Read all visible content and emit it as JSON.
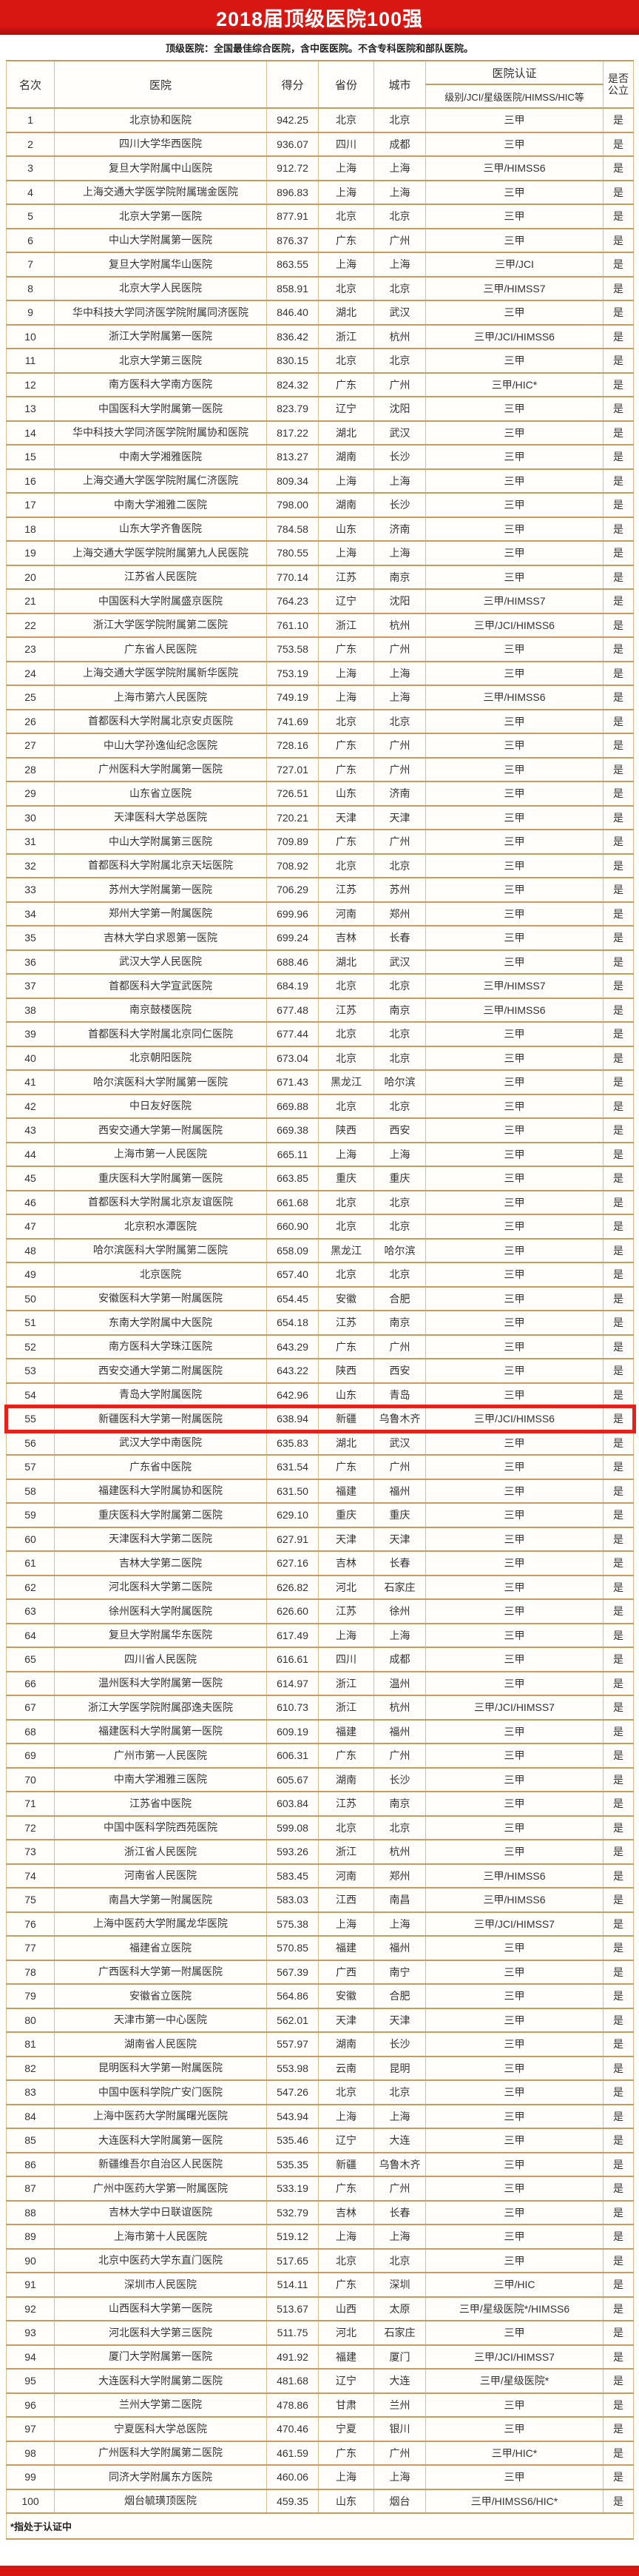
{
  "chart_data": {
    "type": "table",
    "title": "2018届顶级医院100强",
    "subtitle": "顶级医院：全国最佳综合医院，含中医医院。不含专科医院和部队医院。",
    "footnote": "*指处于认证中",
    "highlighted_rank": 55,
    "header": {
      "rank": "名次",
      "hospital": "医院",
      "score": "得分",
      "province": "省份",
      "city": "城市",
      "cert_group": "医院认证",
      "cert_detail": "级别/JCI/星级医院/HIMSS/HIC等",
      "is_public": "是否公立"
    },
    "colors": {
      "banner_red": "#d81712",
      "border_tan": "#c79c60",
      "highlight_red": "#e1231b"
    },
    "rows": [
      [
        1,
        "北京协和医院",
        "942.25",
        "北京",
        "北京",
        "三甲",
        "是"
      ],
      [
        2,
        "四川大学华西医院",
        "936.07",
        "四川",
        "成都",
        "三甲",
        "是"
      ],
      [
        3,
        "复旦大学附属中山医院",
        "912.72",
        "上海",
        "上海",
        "三甲/HIMSS6",
        "是"
      ],
      [
        4,
        "上海交通大学医学院附属瑞金医院",
        "896.83",
        "上海",
        "上海",
        "三甲",
        "是"
      ],
      [
        5,
        "北京大学第一医院",
        "877.91",
        "北京",
        "北京",
        "三甲",
        "是"
      ],
      [
        6,
        "中山大学附属第一医院",
        "876.37",
        "广东",
        "广州",
        "三甲",
        "是"
      ],
      [
        7,
        "复旦大学附属华山医院",
        "863.55",
        "上海",
        "上海",
        "三甲/JCI",
        "是"
      ],
      [
        8,
        "北京大学人民医院",
        "858.91",
        "北京",
        "北京",
        "三甲/HIMSS7",
        "是"
      ],
      [
        9,
        "华中科技大学同济医学院附属同济医院",
        "846.40",
        "湖北",
        "武汉",
        "三甲",
        "是"
      ],
      [
        10,
        "浙江大学附属第一医院",
        "836.42",
        "浙江",
        "杭州",
        "三甲/JCI/HIMSS6",
        "是"
      ],
      [
        11,
        "北京大学第三医院",
        "830.15",
        "北京",
        "北京",
        "三甲",
        "是"
      ],
      [
        12,
        "南方医科大学南方医院",
        "824.32",
        "广东",
        "广州",
        "三甲/HIC*",
        "是"
      ],
      [
        13,
        "中国医科大学附属第一医院",
        "823.79",
        "辽宁",
        "沈阳",
        "三甲",
        "是"
      ],
      [
        14,
        "华中科技大学同济医学院附属协和医院",
        "817.22",
        "湖北",
        "武汉",
        "三甲",
        "是"
      ],
      [
        15,
        "中南大学湘雅医院",
        "813.27",
        "湖南",
        "长沙",
        "三甲",
        "是"
      ],
      [
        16,
        "上海交通大学医学院附属仁济医院",
        "809.34",
        "上海",
        "上海",
        "三甲",
        "是"
      ],
      [
        17,
        "中南大学湘雅二医院",
        "798.00",
        "湖南",
        "长沙",
        "三甲",
        "是"
      ],
      [
        18,
        "山东大学齐鲁医院",
        "784.58",
        "山东",
        "济南",
        "三甲",
        "是"
      ],
      [
        19,
        "上海交通大学医学院附属第九人民医院",
        "780.55",
        "上海",
        "上海",
        "三甲",
        "是"
      ],
      [
        20,
        "江苏省人民医院",
        "770.14",
        "江苏",
        "南京",
        "三甲",
        "是"
      ],
      [
        21,
        "中国医科大学附属盛京医院",
        "764.23",
        "辽宁",
        "沈阳",
        "三甲/HIMSS7",
        "是"
      ],
      [
        22,
        "浙江大学医学院附属第二医院",
        "761.10",
        "浙江",
        "杭州",
        "三甲/JCI/HIMSS6",
        "是"
      ],
      [
        23,
        "广东省人民医院",
        "753.58",
        "广东",
        "广州",
        "三甲",
        "是"
      ],
      [
        24,
        "上海交通大学医学院附属新华医院",
        "753.19",
        "上海",
        "上海",
        "三甲",
        "是"
      ],
      [
        25,
        "上海市第六人民医院",
        "749.19",
        "上海",
        "上海",
        "三甲/HIMSS6",
        "是"
      ],
      [
        26,
        "首都医科大学附属北京安贞医院",
        "741.69",
        "北京",
        "北京",
        "三甲",
        "是"
      ],
      [
        27,
        "中山大学孙逸仙纪念医院",
        "728.16",
        "广东",
        "广州",
        "三甲",
        "是"
      ],
      [
        28,
        "广州医科大学附属第一医院",
        "727.01",
        "广东",
        "广州",
        "三甲",
        "是"
      ],
      [
        29,
        "山东省立医院",
        "726.51",
        "山东",
        "济南",
        "三甲",
        "是"
      ],
      [
        30,
        "天津医科大学总医院",
        "720.21",
        "天津",
        "天津",
        "三甲",
        "是"
      ],
      [
        31,
        "中山大学附属第三医院",
        "709.89",
        "广东",
        "广州",
        "三甲",
        "是"
      ],
      [
        32,
        "首都医科大学附属北京天坛医院",
        "708.92",
        "北京",
        "北京",
        "三甲",
        "是"
      ],
      [
        33,
        "苏州大学附属第一医院",
        "706.29",
        "江苏",
        "苏州",
        "三甲",
        "是"
      ],
      [
        34,
        "郑州大学第一附属医院",
        "699.96",
        "河南",
        "郑州",
        "三甲",
        "是"
      ],
      [
        35,
        "吉林大学白求恩第一医院",
        "699.24",
        "吉林",
        "长春",
        "三甲",
        "是"
      ],
      [
        36,
        "武汉大学人民医院",
        "688.46",
        "湖北",
        "武汉",
        "三甲",
        "是"
      ],
      [
        37,
        "首都医科大学宣武医院",
        "684.19",
        "北京",
        "北京",
        "三甲/HIMSS7",
        "是"
      ],
      [
        38,
        "南京鼓楼医院",
        "677.48",
        "江苏",
        "南京",
        "三甲/HIMSS6",
        "是"
      ],
      [
        39,
        "首都医科大学附属北京同仁医院",
        "677.44",
        "北京",
        "北京",
        "三甲",
        "是"
      ],
      [
        40,
        "北京朝阳医院",
        "673.04",
        "北京",
        "北京",
        "三甲",
        "是"
      ],
      [
        41,
        "哈尔滨医科大学附属第一医院",
        "671.43",
        "黑龙江",
        "哈尔滨",
        "三甲",
        "是"
      ],
      [
        42,
        "中日友好医院",
        "669.88",
        "北京",
        "北京",
        "三甲",
        "是"
      ],
      [
        43,
        "西安交通大学第一附属医院",
        "669.38",
        "陕西",
        "西安",
        "三甲",
        "是"
      ],
      [
        44,
        "上海市第一人民医院",
        "665.11",
        "上海",
        "上海",
        "三甲",
        "是"
      ],
      [
        45,
        "重庆医科大学附属第一医院",
        "663.85",
        "重庆",
        "重庆",
        "三甲",
        "是"
      ],
      [
        46,
        "首都医科大学附属北京友谊医院",
        "661.68",
        "北京",
        "北京",
        "三甲",
        "是"
      ],
      [
        47,
        "北京积水潭医院",
        "660.90",
        "北京",
        "北京",
        "三甲",
        "是"
      ],
      [
        48,
        "哈尔滨医科大学附属第二医院",
        "658.09",
        "黑龙江",
        "哈尔滨",
        "三甲",
        "是"
      ],
      [
        49,
        "北京医院",
        "657.40",
        "北京",
        "北京",
        "三甲",
        "是"
      ],
      [
        50,
        "安徽医科大学第一附属医院",
        "654.45",
        "安徽",
        "合肥",
        "三甲",
        "是"
      ],
      [
        51,
        "东南大学附属中大医院",
        "654.18",
        "江苏",
        "南京",
        "三甲",
        "是"
      ],
      [
        52,
        "南方医科大学珠江医院",
        "643.29",
        "广东",
        "广州",
        "三甲",
        "是"
      ],
      [
        53,
        "西安交通大学第二附属医院",
        "643.22",
        "陕西",
        "西安",
        "三甲",
        "是"
      ],
      [
        54,
        "青岛大学附属医院",
        "642.96",
        "山东",
        "青岛",
        "三甲",
        "是"
      ],
      [
        55,
        "新疆医科大学第一附属医院",
        "638.94",
        "新疆",
        "乌鲁木齐",
        "三甲/JCI/HIMSS6",
        "是"
      ],
      [
        56,
        "武汉大学中南医院",
        "635.83",
        "湖北",
        "武汉",
        "三甲",
        "是"
      ],
      [
        57,
        "广东省中医院",
        "631.54",
        "广东",
        "广州",
        "三甲",
        "是"
      ],
      [
        58,
        "福建医科大学附属协和医院",
        "631.50",
        "福建",
        "福州",
        "三甲",
        "是"
      ],
      [
        59,
        "重庆医科大学附属第二医院",
        "629.10",
        "重庆",
        "重庆",
        "三甲",
        "是"
      ],
      [
        60,
        "天津医科大学第二医院",
        "627.91",
        "天津",
        "天津",
        "三甲",
        "是"
      ],
      [
        61,
        "吉林大学第二医院",
        "627.16",
        "吉林",
        "长春",
        "三甲",
        "是"
      ],
      [
        62,
        "河北医科大学第二医院",
        "626.82",
        "河北",
        "石家庄",
        "三甲",
        "是"
      ],
      [
        63,
        "徐州医科大学附属医院",
        "626.60",
        "江苏",
        "徐州",
        "三甲",
        "是"
      ],
      [
        64,
        "复旦大学附属华东医院",
        "617.49",
        "上海",
        "上海",
        "三甲",
        "是"
      ],
      [
        65,
        "四川省人民医院",
        "616.61",
        "四川",
        "成都",
        "三甲",
        "是"
      ],
      [
        66,
        "温州医科大学附属第一医院",
        "614.97",
        "浙江",
        "温州",
        "三甲",
        "是"
      ],
      [
        67,
        "浙江大学医学院附属邵逸夫医院",
        "610.73",
        "浙江",
        "杭州",
        "三甲/JCI/HIMSS7",
        "是"
      ],
      [
        68,
        "福建医科大学附属第一医院",
        "609.19",
        "福建",
        "福州",
        "三甲",
        "是"
      ],
      [
        69,
        "广州市第一人民医院",
        "606.31",
        "广东",
        "广州",
        "三甲",
        "是"
      ],
      [
        70,
        "中南大学湘雅三医院",
        "605.67",
        "湖南",
        "长沙",
        "三甲",
        "是"
      ],
      [
        71,
        "江苏省中医院",
        "603.84",
        "江苏",
        "南京",
        "三甲",
        "是"
      ],
      [
        72,
        "中国中医科学院西苑医院",
        "599.08",
        "北京",
        "北京",
        "三甲",
        "是"
      ],
      [
        73,
        "浙江省人民医院",
        "593.26",
        "浙江",
        "杭州",
        "三甲",
        "是"
      ],
      [
        74,
        "河南省人民医院",
        "583.45",
        "河南",
        "郑州",
        "三甲/HIMSS6",
        "是"
      ],
      [
        75,
        "南昌大学第一附属医院",
        "583.03",
        "江西",
        "南昌",
        "三甲/HIMSS6",
        "是"
      ],
      [
        76,
        "上海中医药大学附属龙华医院",
        "575.38",
        "上海",
        "上海",
        "三甲/JCI/HIMSS7",
        "是"
      ],
      [
        77,
        "福建省立医院",
        "570.85",
        "福建",
        "福州",
        "三甲",
        "是"
      ],
      [
        78,
        "广西医科大学第一附属医院",
        "567.39",
        "广西",
        "南宁",
        "三甲",
        "是"
      ],
      [
        79,
        "安徽省立医院",
        "564.86",
        "安徽",
        "合肥",
        "三甲",
        "是"
      ],
      [
        80,
        "天津市第一中心医院",
        "562.01",
        "天津",
        "天津",
        "三甲",
        "是"
      ],
      [
        81,
        "湖南省人民医院",
        "557.97",
        "湖南",
        "长沙",
        "三甲",
        "是"
      ],
      [
        82,
        "昆明医科大学第一附属医院",
        "553.98",
        "云南",
        "昆明",
        "三甲",
        "是"
      ],
      [
        83,
        "中国中医科学院广安门医院",
        "547.26",
        "北京",
        "北京",
        "三甲",
        "是"
      ],
      [
        84,
        "上海中医药大学附属曙光医院",
        "543.94",
        "上海",
        "上海",
        "三甲",
        "是"
      ],
      [
        85,
        "大连医科大学附属第一医院",
        "535.46",
        "辽宁",
        "大连",
        "三甲",
        "是"
      ],
      [
        86,
        "新疆维吾尔自治区人民医院",
        "535.35",
        "新疆",
        "乌鲁木齐",
        "三甲",
        "是"
      ],
      [
        87,
        "广州中医药大学第一附属医院",
        "533.19",
        "广东",
        "广州",
        "三甲",
        "是"
      ],
      [
        88,
        "吉林大学中日联谊医院",
        "532.79",
        "吉林",
        "长春",
        "三甲",
        "是"
      ],
      [
        89,
        "上海市第十人民医院",
        "519.12",
        "上海",
        "上海",
        "三甲",
        "是"
      ],
      [
        90,
        "北京中医药大学东直门医院",
        "517.65",
        "北京",
        "北京",
        "三甲",
        "是"
      ],
      [
        91,
        "深圳市人民医院",
        "514.11",
        "广东",
        "深圳",
        "三甲/HIC",
        "是"
      ],
      [
        92,
        "山西医科大学第一医院",
        "513.67",
        "山西",
        "太原",
        "三甲/星级医院*/HIMSS6",
        "是"
      ],
      [
        93,
        "河北医科大学第三医院",
        "511.75",
        "河北",
        "石家庄",
        "三甲",
        "是"
      ],
      [
        94,
        "厦门大学附属第一医院",
        "491.92",
        "福建",
        "厦门",
        "三甲/JCI/HIMSS7",
        "是"
      ],
      [
        95,
        "大连医科大学附属第二医院",
        "481.68",
        "辽宁",
        "大连",
        "三甲/星级医院*",
        "是"
      ],
      [
        96,
        "兰州大学第二医院",
        "478.86",
        "甘肃",
        "兰州",
        "三甲",
        "是"
      ],
      [
        97,
        "宁夏医科大学总医院",
        "470.46",
        "宁夏",
        "银川",
        "三甲",
        "是"
      ],
      [
        98,
        "广州医科大学附属第二医院",
        "461.59",
        "广东",
        "广州",
        "三甲/HIC*",
        "是"
      ],
      [
        99,
        "同济大学附属东方医院",
        "460.06",
        "上海",
        "上海",
        "三甲",
        "是"
      ],
      [
        100,
        "烟台毓璜顶医院",
        "459.35",
        "山东",
        "烟台",
        "三甲/HIMSS6/HIC*",
        "是"
      ]
    ]
  }
}
